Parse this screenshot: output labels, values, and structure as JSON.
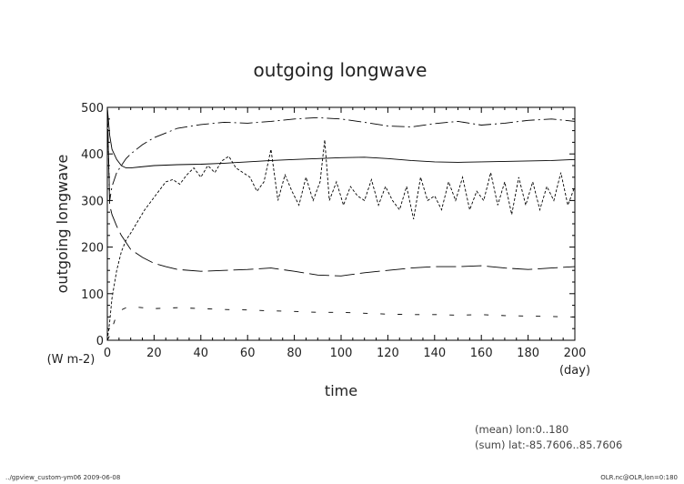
{
  "chart_data": {
    "type": "line",
    "title": "outgoing longwave",
    "xlabel": "time",
    "ylabel": "outgoing longwave",
    "x_unit": "(day)",
    "y_unit": "(W m-2)",
    "xlim": [
      0,
      200
    ],
    "ylim": [
      0,
      500
    ],
    "xticks": [
      0,
      20,
      40,
      60,
      80,
      100,
      120,
      140,
      160,
      180,
      200
    ],
    "yticks": [
      0,
      100,
      200,
      300,
      400,
      500
    ],
    "grid": false,
    "legend": "none",
    "notes": [
      "(mean) lon:0..180",
      "(sum) lat:-85.7606..85.7606"
    ],
    "series": [
      {
        "style": "solid",
        "x": [
          0,
          1,
          2,
          4,
          6,
          8,
          10,
          14,
          20,
          30,
          40,
          50,
          60,
          70,
          80,
          90,
          100,
          110,
          120,
          130,
          140,
          150,
          160,
          170,
          180,
          190,
          200
        ],
        "values": [
          500,
          440,
          410,
          388,
          375,
          370,
          370,
          372,
          375,
          377,
          378,
          380,
          383,
          386,
          388,
          390,
          392,
          393,
          390,
          386,
          383,
          382,
          383,
          384,
          385,
          386,
          388
        ]
      },
      {
        "style": "dash-dot",
        "x": [
          0,
          1,
          2,
          4,
          6,
          8,
          10,
          15,
          20,
          25,
          30,
          40,
          50,
          60,
          70,
          80,
          90,
          100,
          110,
          120,
          130,
          140,
          150,
          160,
          170,
          180,
          190,
          200
        ],
        "values": [
          500,
          300,
          330,
          360,
          375,
          390,
          400,
          420,
          435,
          445,
          455,
          463,
          468,
          466,
          470,
          475,
          478,
          475,
          468,
          460,
          458,
          465,
          470,
          462,
          466,
          472,
          475,
          470
        ]
      },
      {
        "style": "long-dash",
        "x": [
          0,
          1,
          2,
          4,
          6,
          8,
          10,
          15,
          20,
          25,
          30,
          40,
          50,
          60,
          70,
          80,
          90,
          100,
          110,
          120,
          130,
          140,
          150,
          160,
          170,
          180,
          190,
          200
        ],
        "values": [
          500,
          290,
          270,
          245,
          225,
          210,
          195,
          178,
          165,
          158,
          152,
          148,
          150,
          152,
          155,
          148,
          140,
          138,
          145,
          150,
          155,
          158,
          158,
          160,
          155,
          152,
          155,
          158
        ]
      },
      {
        "style": "dashed",
        "x": [
          0,
          1,
          2,
          4,
          6,
          8,
          10,
          13,
          16,
          19,
          22,
          25,
          28,
          31,
          34,
          37,
          40,
          43,
          46,
          49,
          52,
          55,
          58,
          61,
          64,
          67,
          70,
          73,
          76,
          79,
          82,
          85,
          88,
          91,
          93,
          95,
          98,
          101,
          104,
          107,
          110,
          113,
          116,
          119,
          122,
          125,
          128,
          131,
          134,
          137,
          140,
          143,
          146,
          149,
          152,
          155,
          158,
          161,
          164,
          167,
          170,
          173,
          176,
          179,
          182,
          185,
          188,
          191,
          194,
          197,
          200
        ],
        "values": [
          0,
          40,
          90,
          150,
          190,
          215,
          230,
          255,
          280,
          300,
          320,
          340,
          345,
          335,
          355,
          370,
          350,
          375,
          360,
          385,
          395,
          370,
          360,
          350,
          320,
          340,
          410,
          300,
          355,
          320,
          290,
          350,
          300,
          340,
          430,
          300,
          340,
          290,
          330,
          310,
          300,
          345,
          290,
          330,
          300,
          280,
          330,
          260,
          350,
          300,
          310,
          280,
          340,
          300,
          350,
          280,
          320,
          300,
          360,
          290,
          340,
          270,
          350,
          290,
          340,
          280,
          330,
          300,
          360,
          290,
          330
        ]
      },
      {
        "style": "sparse-dash",
        "x": [
          0,
          1,
          2,
          3,
          4,
          6,
          8,
          10,
          15,
          20,
          30,
          40,
          50,
          60,
          70,
          80,
          90,
          100,
          110,
          120,
          130,
          140,
          150,
          160,
          170,
          180,
          190,
          200
        ],
        "values": [
          0,
          10,
          25,
          40,
          55,
          65,
          70,
          72,
          70,
          68,
          70,
          68,
          66,
          65,
          63,
          62,
          60,
          60,
          58,
          56,
          55,
          55,
          54,
          55,
          53,
          52,
          51,
          50
        ]
      }
    ]
  },
  "footer": {
    "left": "../gpview_custom-ym06   2009-06-08",
    "right": "OLR.nc@OLR,lon=0:180"
  }
}
